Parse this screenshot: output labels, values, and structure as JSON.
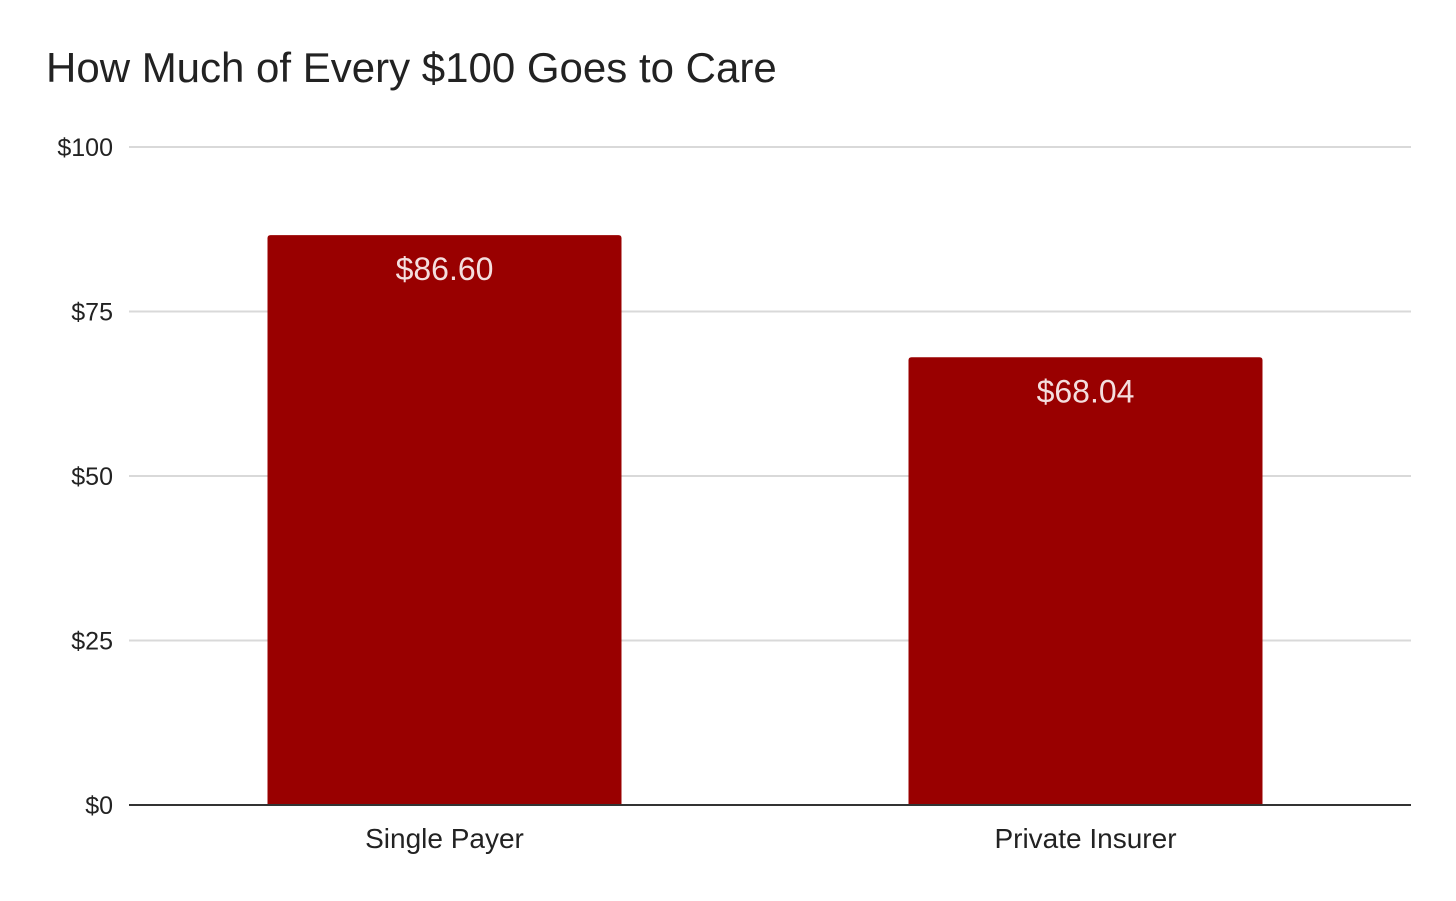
{
  "chart_data": {
    "type": "bar",
    "title": "How Much of Every $100 Goes to Care",
    "xlabel": "",
    "ylabel": "",
    "categories": [
      "Single Payer",
      "Private Insurer"
    ],
    "values": [
      86.6,
      68.04
    ],
    "data_labels": [
      "$86.60",
      "$68.04"
    ],
    "ylim": [
      0,
      100
    ],
    "yticks": [
      0,
      25,
      50,
      75,
      100
    ],
    "ytick_labels": [
      "$0",
      "$25",
      "$50",
      "$75",
      "$100"
    ],
    "grid": true,
    "legend": "none",
    "bar_color": "#990000",
    "grid_color": "#d9d9d9",
    "axis_color": "#333333"
  }
}
